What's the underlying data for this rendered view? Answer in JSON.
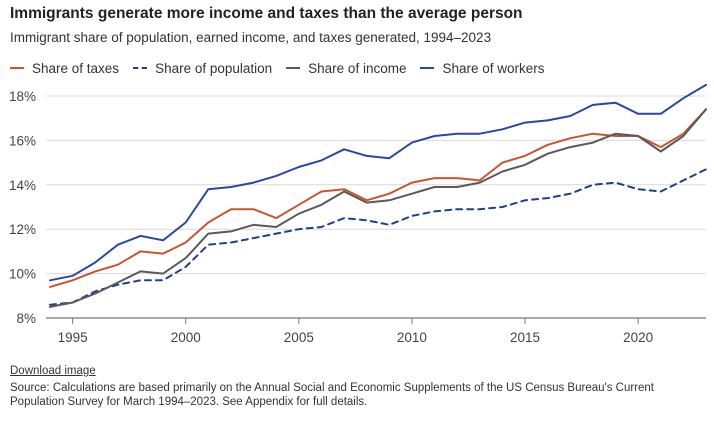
{
  "title": "Immigrants generate more income and taxes than the average person",
  "subtitle": "Immigrant share of population, earned income, and taxes generated, 1994–2023",
  "download_label": "Download image",
  "source_text": "Source: Calculations are based primarily on the Annual Social and Economic Supplements of the US Census Bureau's Current Population Survey for March 1994–2023. See Appendix for full details.",
  "chart_data": {
    "type": "line",
    "title": "Immigrants generate more income and taxes than the average person",
    "xlabel": "",
    "ylabel": "",
    "xlim": [
      1994,
      2023
    ],
    "ylim": [
      8,
      18
    ],
    "grid": true,
    "legend_position": "top",
    "x_ticks": [
      1995,
      2000,
      2005,
      2010,
      2015,
      2020
    ],
    "x_tick_labels": [
      "1995",
      "2000",
      "2005",
      "2010",
      "2015",
      "2020"
    ],
    "y_ticks": [
      8,
      10,
      12,
      14,
      16,
      18
    ],
    "y_tick_labels": [
      "8%",
      "10%",
      "12%",
      "14%",
      "16%",
      "18%"
    ],
    "x": [
      1994,
      1995,
      1996,
      1997,
      1998,
      1999,
      2000,
      2001,
      2002,
      2003,
      2004,
      2005,
      2006,
      2007,
      2008,
      2009,
      2010,
      2011,
      2012,
      2013,
      2014,
      2015,
      2016,
      2017,
      2018,
      2019,
      2020,
      2021,
      2022,
      2023
    ],
    "series": [
      {
        "name": "Share of taxes",
        "color": "#c8552f",
        "dashed": false,
        "values": [
          9.4,
          9.7,
          10.1,
          10.4,
          11.0,
          10.9,
          11.4,
          12.3,
          12.9,
          12.9,
          12.5,
          13.1,
          13.7,
          13.8,
          13.3,
          13.6,
          14.1,
          14.3,
          14.3,
          14.2,
          15.0,
          15.3,
          15.8,
          16.1,
          16.3,
          16.2,
          16.2,
          15.7,
          16.3,
          17.4
        ]
      },
      {
        "name": "Share of population",
        "color": "#1f3f8f",
        "dashed": true,
        "values": [
          8.6,
          8.7,
          9.2,
          9.5,
          9.7,
          9.7,
          10.3,
          11.3,
          11.4,
          11.6,
          11.8,
          12.0,
          12.1,
          12.5,
          12.4,
          12.2,
          12.6,
          12.8,
          12.9,
          12.9,
          13.0,
          13.3,
          13.4,
          13.6,
          14.0,
          14.1,
          13.8,
          13.7,
          14.2,
          14.7
        ]
      },
      {
        "name": "Share of income",
        "color": "#5a5a5a",
        "dashed": false,
        "values": [
          8.5,
          8.7,
          9.1,
          9.6,
          10.1,
          10.0,
          10.7,
          11.8,
          11.9,
          12.2,
          12.1,
          12.7,
          13.1,
          13.7,
          13.2,
          13.3,
          13.6,
          13.9,
          13.9,
          14.1,
          14.6,
          14.9,
          15.4,
          15.7,
          15.9,
          16.3,
          16.2,
          15.5,
          16.2,
          17.4
        ]
      },
      {
        "name": "Share of workers",
        "color": "#2a47a8",
        "dashed": false,
        "values": [
          9.7,
          9.9,
          10.5,
          11.3,
          11.7,
          11.5,
          12.3,
          13.8,
          13.9,
          14.1,
          14.4,
          14.8,
          15.1,
          15.6,
          15.3,
          15.2,
          15.9,
          16.2,
          16.3,
          16.3,
          16.5,
          16.8,
          16.9,
          17.1,
          17.6,
          17.7,
          17.2,
          17.2,
          17.9,
          18.5
        ]
      }
    ]
  }
}
